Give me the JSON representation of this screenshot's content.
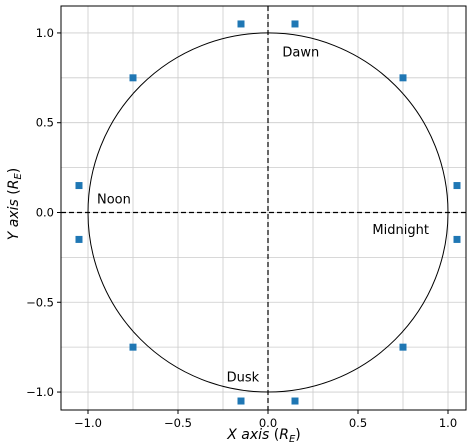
{
  "chart_data": {
    "type": "scatter",
    "title": "",
    "xlabel": {
      "main": "X axis",
      "paren_open": " (",
      "sym": "R",
      "sub": "E",
      "paren_close": ")"
    },
    "ylabel": {
      "main": "Y axis",
      "paren_open": " (",
      "sym": "R",
      "sub": "E",
      "paren_close": ")"
    },
    "xlim": [
      -1.15,
      1.1
    ],
    "ylim": [
      -1.1,
      1.15
    ],
    "grid": true,
    "xticks": [
      -1.0,
      -0.5,
      0.0,
      0.5,
      1.0
    ],
    "yticks": [
      -1.0,
      -0.5,
      0.0,
      0.5,
      1.0
    ],
    "xtick_labels": [
      "−1.0",
      "−0.5",
      "0.0",
      "0.5",
      "1.0"
    ],
    "ytick_labels": [
      "−1.0",
      "−0.5",
      "0.0",
      "0.5",
      "1.0"
    ],
    "circle": {
      "cx": 0,
      "cy": 0,
      "r": 1.0
    },
    "reference_lines": {
      "x": 0,
      "y": 0,
      "style": "dashed"
    },
    "marker_color": "#1f77b4",
    "points": [
      {
        "x": -0.15,
        "y": 1.05
      },
      {
        "x": 0.15,
        "y": 1.05
      },
      {
        "x": -0.75,
        "y": 0.75
      },
      {
        "x": 0.75,
        "y": 0.75
      },
      {
        "x": -1.05,
        "y": 0.15
      },
      {
        "x": 1.05,
        "y": 0.15
      },
      {
        "x": -1.05,
        "y": -0.15
      },
      {
        "x": 1.05,
        "y": -0.15
      },
      {
        "x": -0.75,
        "y": -0.75
      },
      {
        "x": 0.75,
        "y": -0.75
      },
      {
        "x": -0.15,
        "y": -1.05
      },
      {
        "x": 0.15,
        "y": -1.05
      }
    ],
    "annotations": [
      {
        "text": "Dawn",
        "x": 0.08,
        "y": 0.87
      },
      {
        "text": "Noon",
        "x": -0.95,
        "y": 0.05
      },
      {
        "text": "Midnight",
        "x": 0.58,
        "y": -0.12
      },
      {
        "text": "Dusk",
        "x": -0.23,
        "y": -0.94
      }
    ]
  }
}
